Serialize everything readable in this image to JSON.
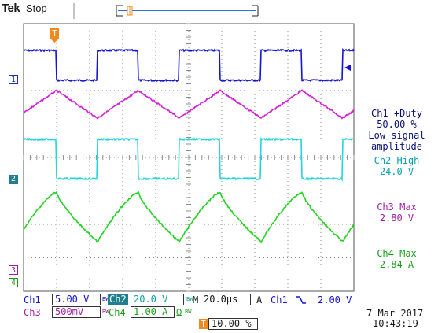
{
  "header": {
    "brand": "Tek",
    "status": "Stop"
  },
  "trigger_icon": "T",
  "trigger_marker_color": "#f08a1c",
  "channel_markers": [
    {
      "id": "ch1",
      "label": "1",
      "color": "#1f2fbf",
      "fill": "#ffffff"
    },
    {
      "id": "ch2",
      "label": "2",
      "color": "#ffffff",
      "fill": "#1f7f8f"
    },
    {
      "id": "ch3",
      "label": "3",
      "color": "#a01fa0",
      "fill": "#ffffff"
    },
    {
      "id": "ch4",
      "label": "4",
      "color": "#1a9e1a",
      "fill": "#ffffff"
    }
  ],
  "traces": {
    "ch1_color": "#1414d2",
    "ch2_color": "#22d6dc",
    "ch3_color": "#d81cd8",
    "ch4_color": "#22d422",
    "grid_color": "#8c8c8c"
  },
  "measurements": [
    {
      "lines": [
        "Ch1 +Duty",
        "50.00 %",
        "Low signal",
        "amplitude"
      ],
      "color": "#0a1070"
    },
    {
      "lines": [
        "Ch2 High",
        "24.0 V"
      ],
      "color": "#0aa0a8"
    },
    {
      "lines": [
        "Ch3 Max",
        "2.80 V"
      ],
      "color": "#a01fa0"
    },
    {
      "lines": [
        "Ch4 Max",
        "2.84 A"
      ],
      "color": "#1a9e1a"
    }
  ],
  "readouts": {
    "ch1_label": "Ch1",
    "ch1_scale": "5.00 V",
    "ch2_label": "Ch2",
    "ch2_scale": "20.0 V",
    "ch3_label": "Ch3",
    "ch3_scale": "500mV",
    "ch4_label": "Ch4",
    "ch4_scale": "1.00 A",
    "ch4_unit_icon": "Ω",
    "bw_icon": "BW",
    "timebase_prefix": "M",
    "timebase": "20.0µs",
    "trigger_mode": "A",
    "trigger_channel": "Ch1",
    "trigger_slope_icon": "falling-edge",
    "trigger_level": "2.00 V",
    "trigger_position": "10.00 %",
    "date": "7 Mar 2017",
    "time": "10:43:19"
  }
}
